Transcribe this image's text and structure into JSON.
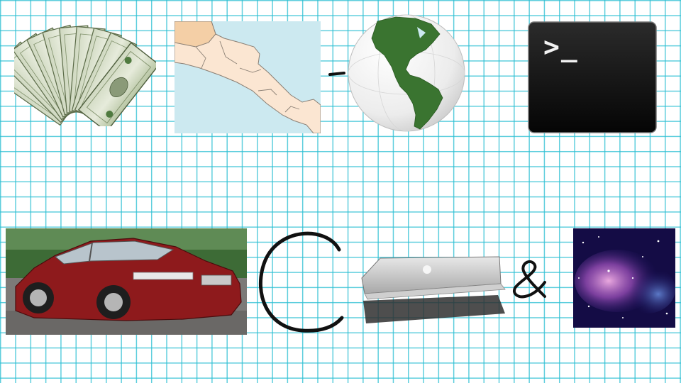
{
  "slide": {
    "background": "grid-paper",
    "grid_color": "#28bed2"
  },
  "row1": {
    "items": [
      {
        "name": "money-fan",
        "icon": "money-icon"
      },
      {
        "name": "central-america-map",
        "icon": "map-icon"
      },
      {
        "name": "dash",
        "text": "-"
      },
      {
        "name": "americas-globe",
        "icon": "globe-icon"
      },
      {
        "name": "terminal",
        "icon": "terminal-icon",
        "text": ">_"
      }
    ]
  },
  "row2": {
    "items": [
      {
        "name": "red-sedan",
        "icon": "car-icon"
      },
      {
        "name": "letter-c",
        "text": "C"
      },
      {
        "name": "laptop",
        "icon": "laptop-icon"
      },
      {
        "name": "ampersand",
        "text": "&"
      },
      {
        "name": "galaxy",
        "icon": "galaxy-icon"
      }
    ]
  },
  "colors": {
    "ink": "#111111",
    "map_sea": "#cce9f0",
    "map_land": "#fbe6d2",
    "globe_land": "#3a7430",
    "terminal_bg": "#0a0a0a",
    "car_red": "#8e1a1c"
  }
}
